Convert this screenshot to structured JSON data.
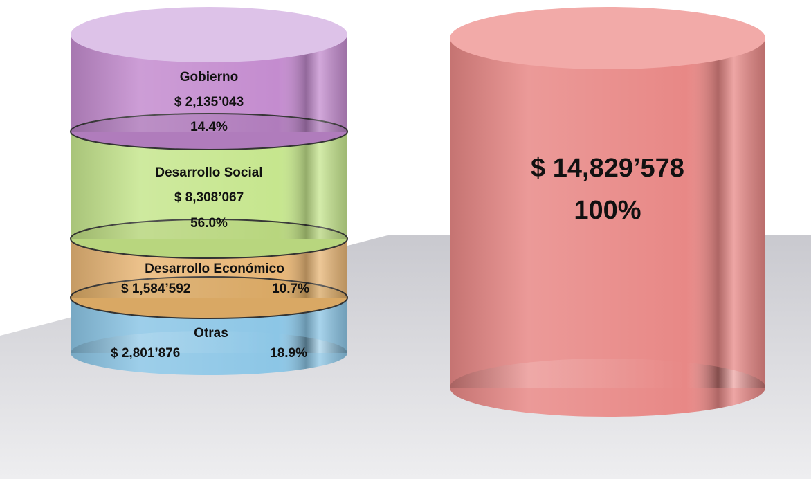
{
  "segments": [
    {
      "label": "Gobierno",
      "amount": "$ 2,135’043",
      "percent": "14.4%"
    },
    {
      "label": "Desarrollo Social",
      "amount": "$ 8,308’067",
      "percent": "56.0%"
    },
    {
      "label": "Desarrollo Económico",
      "amount": "$ 1,584’592",
      "percent": "10.7%"
    },
    {
      "label": "Otras",
      "amount": "$ 2,801’876",
      "percent": "18.9%"
    }
  ],
  "total": {
    "amount": "$ 14,829’578",
    "percent": "100%"
  }
}
